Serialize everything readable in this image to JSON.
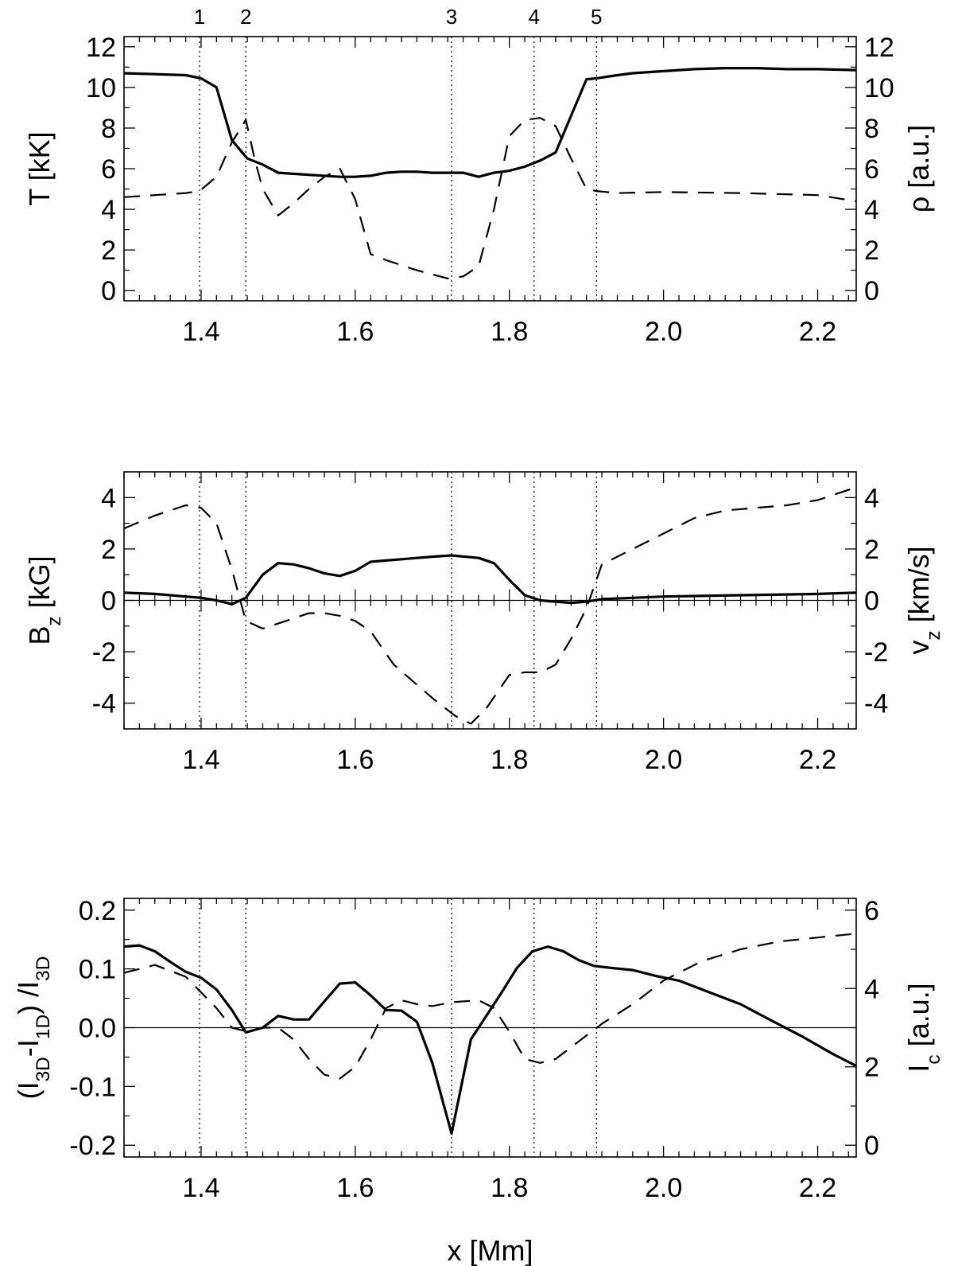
{
  "markers": {
    "labels": [
      "1",
      "2",
      "3",
      "4",
      "5"
    ],
    "x": [
      1.398,
      1.458,
      1.725,
      1.832,
      1.913
    ]
  },
  "chart_data": [
    {
      "type": "line",
      "ylabel_left": "T [kK]",
      "ylabel_right": "ρ [a.u.]",
      "xlim": [
        1.3,
        2.25
      ],
      "ylim_left": [
        -0.5,
        12.5
      ],
      "ylim_right": [
        -0.5,
        12.5
      ],
      "x_ticks": [
        1.4,
        1.6,
        1.8,
        2.0,
        2.2
      ],
      "x_tick_labels": [
        "1.4",
        "1.6",
        "1.8",
        "2.0",
        "2.2"
      ],
      "y_ticks_left": [
        0,
        2,
        4,
        6,
        8,
        10,
        12
      ],
      "y_tick_labels_left": [
        "0",
        "2",
        "4",
        "6",
        "8",
        "10",
        "12"
      ],
      "y_ticks_right": [
        0,
        2,
        4,
        6,
        8,
        10,
        12
      ],
      "y_tick_labels_right": [
        "0",
        "2",
        "4",
        "6",
        "8",
        "10",
        "12"
      ],
      "zero_line": false,
      "series": [
        {
          "style": "solid",
          "axis": "left",
          "x": [
            1.3,
            1.34,
            1.38,
            1.4,
            1.42,
            1.44,
            1.46,
            1.48,
            1.5,
            1.54,
            1.58,
            1.6,
            1.62,
            1.64,
            1.66,
            1.68,
            1.7,
            1.72,
            1.74,
            1.76,
            1.78,
            1.8,
            1.82,
            1.84,
            1.86,
            1.88,
            1.9,
            1.913,
            1.94,
            1.96,
            2.0,
            2.04,
            2.08,
            2.12,
            2.16,
            2.2,
            2.25
          ],
          "y": [
            10.7,
            10.65,
            10.6,
            10.45,
            10.0,
            7.4,
            6.5,
            6.2,
            5.8,
            5.7,
            5.6,
            5.6,
            5.65,
            5.8,
            5.85,
            5.85,
            5.8,
            5.8,
            5.8,
            5.6,
            5.8,
            5.9,
            6.1,
            6.4,
            6.8,
            8.6,
            10.4,
            10.45,
            10.6,
            10.7,
            10.8,
            10.9,
            10.95,
            10.95,
            10.9,
            10.9,
            10.85
          ]
        },
        {
          "style": "dashed",
          "axis": "right",
          "x": [
            1.3,
            1.34,
            1.38,
            1.398,
            1.42,
            1.44,
            1.458,
            1.47,
            1.48,
            1.5,
            1.52,
            1.54,
            1.56,
            1.58,
            1.6,
            1.62,
            1.64,
            1.68,
            1.72,
            1.74,
            1.76,
            1.78,
            1.8,
            1.82,
            1.84,
            1.86,
            1.88,
            1.9,
            1.913,
            1.94,
            2.0,
            2.1,
            2.2,
            2.25
          ],
          "y": [
            4.6,
            4.7,
            4.8,
            4.9,
            5.6,
            7.3,
            8.4,
            6.4,
            5.0,
            3.7,
            4.3,
            5.0,
            5.6,
            6.0,
            4.5,
            1.8,
            1.5,
            1.0,
            0.6,
            0.7,
            1.2,
            4.0,
            7.6,
            8.4,
            8.5,
            8.1,
            6.5,
            5.0,
            4.9,
            4.8,
            4.85,
            4.8,
            4.7,
            4.4
          ]
        }
      ]
    },
    {
      "type": "line",
      "ylabel_left": "B_z [kG]",
      "ylabel_right": "v_z [km/s]",
      "xlim": [
        1.3,
        2.25
      ],
      "ylim_left": [
        -5,
        5
      ],
      "ylim_right": [
        -5,
        5
      ],
      "x_ticks": [
        1.4,
        1.6,
        1.8,
        2.0,
        2.2
      ],
      "x_tick_labels": [
        "1.4",
        "1.6",
        "1.8",
        "2.0",
        "2.2"
      ],
      "y_ticks_left": [
        -4,
        -2,
        0,
        2,
        4
      ],
      "y_tick_labels_left": [
        "-4",
        "-2",
        "0",
        "2",
        "4"
      ],
      "y_ticks_right": [
        -4,
        -2,
        0,
        2,
        4
      ],
      "y_tick_labels_right": [
        "-4",
        "-2",
        "0",
        "2",
        "4"
      ],
      "zero_line": true,
      "series": [
        {
          "style": "solid",
          "axis": "left",
          "x": [
            1.3,
            1.34,
            1.38,
            1.4,
            1.42,
            1.44,
            1.458,
            1.48,
            1.5,
            1.52,
            1.54,
            1.56,
            1.58,
            1.6,
            1.62,
            1.64,
            1.66,
            1.68,
            1.7,
            1.725,
            1.76,
            1.78,
            1.8,
            1.82,
            1.84,
            1.86,
            1.88,
            1.9,
            1.92,
            1.96,
            2.0,
            2.1,
            2.2,
            2.25
          ],
          "y": [
            0.3,
            0.25,
            0.15,
            0.1,
            0.0,
            -0.15,
            0.1,
            1.0,
            1.45,
            1.4,
            1.25,
            1.05,
            0.95,
            1.15,
            1.5,
            1.55,
            1.6,
            1.65,
            1.7,
            1.75,
            1.65,
            1.45,
            0.8,
            0.2,
            0.0,
            -0.05,
            -0.1,
            -0.05,
            0.05,
            0.1,
            0.15,
            0.2,
            0.25,
            0.3
          ]
        },
        {
          "style": "dashed",
          "axis": "right",
          "x": [
            1.3,
            1.34,
            1.38,
            1.4,
            1.42,
            1.44,
            1.458,
            1.48,
            1.5,
            1.52,
            1.54,
            1.56,
            1.58,
            1.6,
            1.62,
            1.65,
            1.7,
            1.73,
            1.75,
            1.77,
            1.8,
            1.82,
            1.84,
            1.86,
            1.88,
            1.9,
            1.92,
            1.96,
            2.0,
            2.04,
            2.08,
            2.12,
            2.16,
            2.2,
            2.25
          ],
          "y": [
            2.8,
            3.3,
            3.7,
            3.6,
            3.0,
            1.2,
            -0.8,
            -1.1,
            -0.9,
            -0.7,
            -0.5,
            -0.5,
            -0.6,
            -0.8,
            -1.2,
            -2.5,
            -3.8,
            -4.5,
            -4.8,
            -4.2,
            -2.9,
            -2.8,
            -2.8,
            -2.5,
            -1.5,
            -0.3,
            1.4,
            2.0,
            2.6,
            3.2,
            3.5,
            3.6,
            3.7,
            3.9,
            4.4
          ]
        }
      ]
    },
    {
      "type": "line",
      "xlabel": "x [Mm]",
      "ylabel_left": "(I_3D-I_1D) /I_3D",
      "ylabel_right": "I_c [a.u.]",
      "xlim": [
        1.3,
        2.25
      ],
      "ylim_left": [
        -0.22,
        0.22
      ],
      "ylim_right": [
        -0.3,
        6.3
      ],
      "x_ticks": [
        1.4,
        1.6,
        1.8,
        2.0,
        2.2
      ],
      "x_tick_labels": [
        "1.4",
        "1.6",
        "1.8",
        "2.0",
        "2.2"
      ],
      "y_ticks_left": [
        -0.2,
        -0.1,
        0.0,
        0.1,
        0.2
      ],
      "y_tick_labels_left": [
        "-0.2",
        "-0.1",
        "0.0",
        "0.1",
        "0.2"
      ],
      "y_ticks_right": [
        0,
        2,
        4,
        6
      ],
      "y_tick_labels_right": [
        "0",
        "2",
        "4",
        "6"
      ],
      "zero_line": true,
      "series": [
        {
          "style": "solid",
          "axis": "left",
          "x": [
            1.3,
            1.32,
            1.34,
            1.36,
            1.38,
            1.4,
            1.42,
            1.44,
            1.458,
            1.48,
            1.5,
            1.52,
            1.54,
            1.56,
            1.58,
            1.6,
            1.62,
            1.64,
            1.66,
            1.68,
            1.7,
            1.725,
            1.75,
            1.77,
            1.79,
            1.81,
            1.83,
            1.85,
            1.87,
            1.89,
            1.91,
            1.93,
            1.96,
            1.99,
            2.02,
            2.06,
            2.1,
            2.14,
            2.18,
            2.22,
            2.25
          ],
          "y": [
            0.138,
            0.14,
            0.13,
            0.112,
            0.095,
            0.085,
            0.065,
            0.03,
            -0.008,
            0.0,
            0.02,
            0.014,
            0.014,
            0.045,
            0.075,
            0.077,
            0.055,
            0.03,
            0.029,
            0.01,
            -0.06,
            -0.18,
            -0.02,
            0.02,
            0.06,
            0.102,
            0.13,
            0.138,
            0.13,
            0.115,
            0.105,
            0.102,
            0.098,
            0.088,
            0.08,
            0.06,
            0.04,
            0.012,
            -0.015,
            -0.045,
            -0.065
          ]
        },
        {
          "style": "dashed",
          "axis": "right",
          "x": [
            1.3,
            1.34,
            1.38,
            1.42,
            1.44,
            1.46,
            1.48,
            1.5,
            1.52,
            1.54,
            1.56,
            1.58,
            1.6,
            1.62,
            1.64,
            1.66,
            1.68,
            1.7,
            1.725,
            1.76,
            1.78,
            1.8,
            1.82,
            1.84,
            1.86,
            1.88,
            1.9,
            1.92,
            1.96,
            2.0,
            2.05,
            2.1,
            2.15,
            2.2,
            2.25
          ],
          "y": [
            4.4,
            4.6,
            4.3,
            3.5,
            3.0,
            2.9,
            3.0,
            3.0,
            2.7,
            2.2,
            1.8,
            1.7,
            2.0,
            2.7,
            3.5,
            3.7,
            3.6,
            3.55,
            3.65,
            3.7,
            3.5,
            2.9,
            2.2,
            2.1,
            2.2,
            2.5,
            2.8,
            3.1,
            3.6,
            4.2,
            4.7,
            5.0,
            5.2,
            5.3,
            5.4
          ]
        }
      ]
    }
  ]
}
